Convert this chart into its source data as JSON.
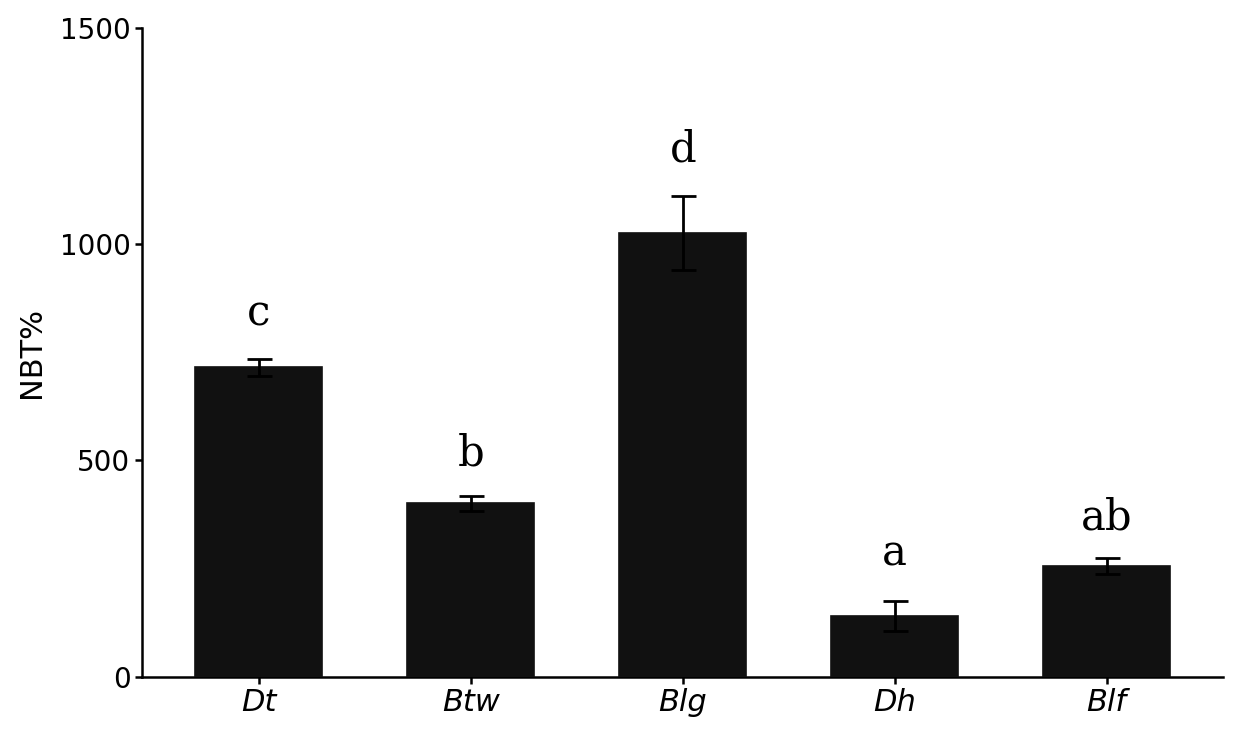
{
  "categories": [
    "Dt",
    "Btw",
    "Blg",
    "Dh",
    "Blf"
  ],
  "values": [
    715,
    400,
    1025,
    140,
    255
  ],
  "errors": [
    20,
    18,
    85,
    35,
    18
  ],
  "bar_color": "#111111",
  "edge_color": "#111111",
  "background_color": "#ffffff",
  "ylabel": "NBT%",
  "ylim": [
    0,
    1500
  ],
  "yticks": [
    0,
    500,
    1000,
    1500
  ],
  "significance_labels": [
    "c",
    "b",
    "d",
    "a",
    "ab"
  ],
  "label_offsets": [
    55,
    50,
    60,
    60,
    45
  ],
  "bar_width": 0.6,
  "axis_fontsize": 22,
  "tick_fontsize": 20,
  "sig_fontsize": 30,
  "ylabel_fontsize": 22
}
